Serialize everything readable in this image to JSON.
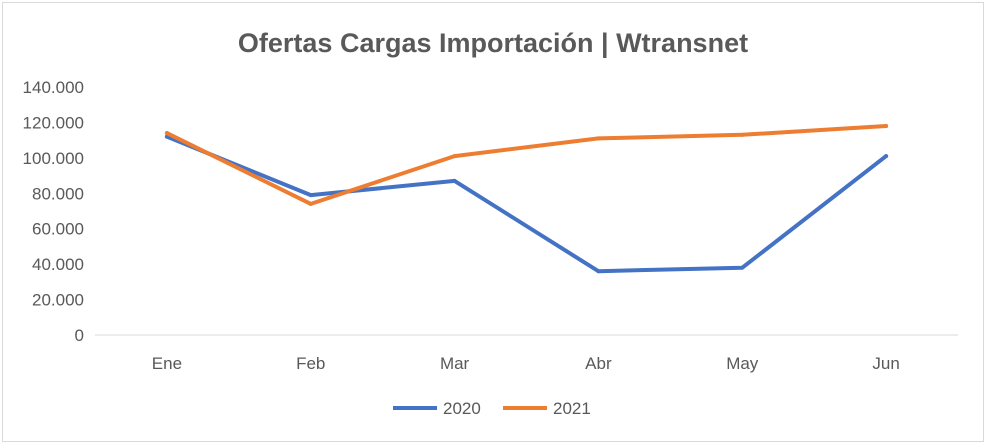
{
  "chart_data": {
    "type": "line",
    "title": "Ofertas Cargas Importación | Wtransnet",
    "xlabel": "",
    "ylabel": "",
    "categories": [
      "Ene",
      "Feb",
      "Mar",
      "Abr",
      "May",
      "Jun"
    ],
    "y_ticks": [
      "0",
      "20.000",
      "40.000",
      "60.000",
      "80.000",
      "100.000",
      "120.000",
      "140.000"
    ],
    "ylim": [
      0,
      140000
    ],
    "grid": false,
    "legend_position": "bottom",
    "series": [
      {
        "name": "2020",
        "color": "#4472c4",
        "values": [
          112000,
          79000,
          87000,
          36000,
          38000,
          101000
        ]
      },
      {
        "name": "2021",
        "color": "#ed7d31",
        "values": [
          114000,
          74000,
          101000,
          111000,
          113000,
          118000
        ]
      }
    ]
  }
}
